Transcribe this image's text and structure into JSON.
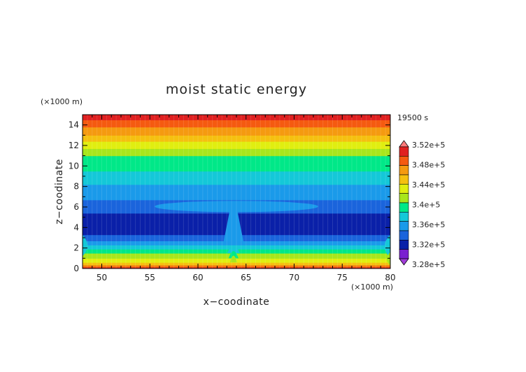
{
  "chart_data": {
    "type": "heatmap",
    "title": "moist static energy",
    "xlabel": "x−coodinate",
    "ylabel": "z−coodinate",
    "x_unit": "(×1000 m)",
    "y_unit": "(×1000 m)",
    "time_label": "19500 s",
    "xlim": [
      48,
      80
    ],
    "ylim": [
      0,
      15
    ],
    "x_ticks": [
      50,
      55,
      60,
      65,
      70,
      75,
      80
    ],
    "y_ticks": [
      0,
      2,
      4,
      6,
      8,
      10,
      12,
      14
    ],
    "bands": [
      {
        "z0": 0.0,
        "z1": 0.15,
        "color": "#e02020"
      },
      {
        "z0": 0.15,
        "z1": 0.35,
        "color": "#f57a10"
      },
      {
        "z0": 0.35,
        "z1": 0.6,
        "color": "#f5c010"
      },
      {
        "z0": 0.6,
        "z1": 1.0,
        "color": "#e0ee10"
      },
      {
        "z0": 1.0,
        "z1": 1.5,
        "color": "#a8e61c"
      },
      {
        "z0": 1.5,
        "z1": 1.9,
        "color": "#00e888"
      },
      {
        "z0": 1.9,
        "z1": 2.3,
        "color": "#14c8d8"
      },
      {
        "z0": 2.3,
        "z1": 2.7,
        "color": "#1a9aea"
      },
      {
        "z0": 2.7,
        "z1": 3.3,
        "color": "#1a64dc"
      },
      {
        "z0": 3.3,
        "z1": 5.4,
        "color": "#0a20a8"
      },
      {
        "z0": 5.4,
        "z1": 6.7,
        "color": "#1a64dc"
      },
      {
        "z0": 6.7,
        "z1": 8.2,
        "color": "#1a9aea"
      },
      {
        "z0": 8.2,
        "z1": 9.5,
        "color": "#14c8d8"
      },
      {
        "z0": 9.5,
        "z1": 11.0,
        "color": "#00e888"
      },
      {
        "z0": 11.0,
        "z1": 11.7,
        "color": "#a8e61c"
      },
      {
        "z0": 11.7,
        "z1": 12.4,
        "color": "#e0ee10"
      },
      {
        "z0": 12.4,
        "z1": 13.0,
        "color": "#f5c010"
      },
      {
        "z0": 13.0,
        "z1": 13.8,
        "color": "#f59a10"
      },
      {
        "z0": 13.8,
        "z1": 14.5,
        "color": "#f55a10"
      },
      {
        "z0": 14.5,
        "z1": 15.0,
        "color": "#e02020"
      }
    ],
    "features": {
      "column_x": [
        62.6,
        64.8
      ],
      "column_z": [
        2.3,
        6.4
      ],
      "layer_6km_x": [
        55.5,
        72.5
      ],
      "layer_6km_z": [
        5.5,
        6.6
      ]
    },
    "colorbar": {
      "labels": [
        "3.52e+5",
        "3.48e+5",
        "3.44e+5",
        "3.4e+5",
        "3.36e+5",
        "3.32e+5",
        "3.28e+5"
      ],
      "colors": [
        "#ff7b7b",
        "#e02020",
        "#f55a10",
        "#f59a10",
        "#f5c010",
        "#e0ee10",
        "#a8e61c",
        "#00e888",
        "#14c8d8",
        "#1a9aea",
        "#1a64dc",
        "#0a20a8",
        "#7a20d0",
        "#a03cd8"
      ]
    }
  }
}
